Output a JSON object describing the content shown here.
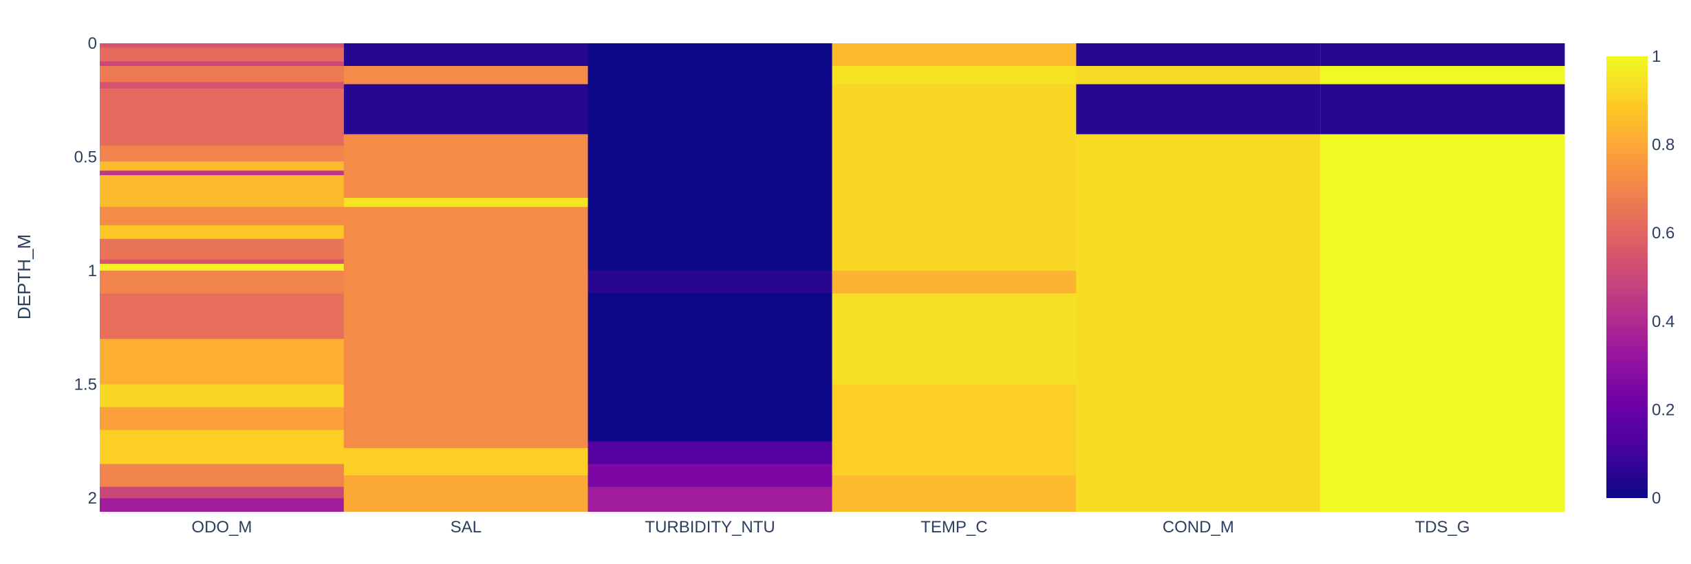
{
  "chart_data": {
    "type": "heatmap",
    "title": "",
    "xlabel": "",
    "ylabel": "DEPTH_M",
    "categories": [
      "ODO_M",
      "SAL",
      "TURBIDITY_NTU",
      "TEMP_C",
      "COND_M",
      "TDS_G"
    ],
    "ylim": [
      0,
      2.06
    ],
    "y_reversed": true,
    "y_ticks": [
      {
        "value": 0,
        "label": "0"
      },
      {
        "value": 0.5,
        "label": "0.5"
      },
      {
        "value": 1,
        "label": "1"
      },
      {
        "value": 1.5,
        "label": "1.5"
      },
      {
        "value": 2,
        "label": "2"
      }
    ],
    "colorscale_name": "Plasma",
    "colorscale": [
      [
        0.0,
        "#0d0887"
      ],
      [
        0.111,
        "#46039f"
      ],
      [
        0.222,
        "#7201a8"
      ],
      [
        0.333,
        "#9c179e"
      ],
      [
        0.444,
        "#bd3786"
      ],
      [
        0.556,
        "#d8576b"
      ],
      [
        0.667,
        "#ed7953"
      ],
      [
        0.778,
        "#fb9f3a"
      ],
      [
        0.889,
        "#fdca26"
      ],
      [
        1.0,
        "#f0f921"
      ]
    ],
    "colorbar": {
      "range": [
        0,
        1
      ],
      "ticks": [
        {
          "value": 0,
          "label": "0"
        },
        {
          "value": 0.2,
          "label": "0.2"
        },
        {
          "value": 0.4,
          "label": "0.4"
        },
        {
          "value": 0.6,
          "label": "0.6"
        },
        {
          "value": 0.8,
          "label": "0.8"
        },
        {
          "value": 1,
          "label": "1"
        }
      ]
    },
    "series": [
      {
        "name": "ODO_M",
        "base": 0.8,
        "bands": [
          {
            "from": 0.0,
            "to": 0.02,
            "value": 0.55
          },
          {
            "from": 0.02,
            "to": 0.08,
            "value": 0.62
          },
          {
            "from": 0.08,
            "to": 0.1,
            "value": 0.5
          },
          {
            "from": 0.1,
            "to": 0.17,
            "value": 0.67
          },
          {
            "from": 0.17,
            "to": 0.2,
            "value": 0.55
          },
          {
            "from": 0.2,
            "to": 0.45,
            "value": 0.62
          },
          {
            "from": 0.45,
            "to": 0.52,
            "value": 0.7
          },
          {
            "from": 0.52,
            "to": 0.56,
            "value": 0.85
          },
          {
            "from": 0.56,
            "to": 0.58,
            "value": 0.45
          },
          {
            "from": 0.58,
            "to": 0.72,
            "value": 0.85
          },
          {
            "from": 0.72,
            "to": 0.8,
            "value": 0.72
          },
          {
            "from": 0.8,
            "to": 0.86,
            "value": 0.88
          },
          {
            "from": 0.86,
            "to": 0.95,
            "value": 0.65
          },
          {
            "from": 0.95,
            "to": 0.97,
            "value": 0.55
          },
          {
            "from": 0.97,
            "to": 1.0,
            "value": 0.98
          },
          {
            "from": 1.0,
            "to": 1.1,
            "value": 0.7
          },
          {
            "from": 1.1,
            "to": 1.3,
            "value": 0.63
          },
          {
            "from": 1.3,
            "to": 1.5,
            "value": 0.82
          },
          {
            "from": 1.5,
            "to": 1.6,
            "value": 0.92
          },
          {
            "from": 1.6,
            "to": 1.7,
            "value": 0.78
          },
          {
            "from": 1.7,
            "to": 1.85,
            "value": 0.9
          },
          {
            "from": 1.85,
            "to": 1.95,
            "value": 0.7
          },
          {
            "from": 1.95,
            "to": 2.0,
            "value": 0.5
          },
          {
            "from": 2.0,
            "to": 2.06,
            "value": 0.35
          }
        ]
      },
      {
        "name": "SAL",
        "base": 0.72,
        "bands": [
          {
            "from": 0.0,
            "to": 0.1,
            "value": 0.05
          },
          {
            "from": 0.1,
            "to": 0.18,
            "value": 0.72
          },
          {
            "from": 0.18,
            "to": 0.4,
            "value": 0.05
          },
          {
            "from": 0.4,
            "to": 0.68,
            "value": 0.72
          },
          {
            "from": 0.68,
            "to": 0.72,
            "value": 0.95
          },
          {
            "from": 0.72,
            "to": 1.78,
            "value": 0.72
          },
          {
            "from": 1.78,
            "to": 1.9,
            "value": 0.9
          },
          {
            "from": 1.9,
            "to": 2.06,
            "value": 0.8
          }
        ]
      },
      {
        "name": "TURBIDITY_NTU",
        "base": 0.0,
        "bands": [
          {
            "from": 0.0,
            "to": 1.0,
            "value": 0.0
          },
          {
            "from": 1.0,
            "to": 1.1,
            "value": 0.05
          },
          {
            "from": 1.1,
            "to": 1.75,
            "value": 0.0
          },
          {
            "from": 1.75,
            "to": 1.85,
            "value": 0.15
          },
          {
            "from": 1.85,
            "to": 1.95,
            "value": 0.25
          },
          {
            "from": 1.95,
            "to": 2.06,
            "value": 0.35
          }
        ]
      },
      {
        "name": "TEMP_C",
        "base": 0.92,
        "bands": [
          {
            "from": 0.0,
            "to": 0.1,
            "value": 0.85
          },
          {
            "from": 0.1,
            "to": 0.18,
            "value": 0.95
          },
          {
            "from": 0.18,
            "to": 1.0,
            "value": 0.92
          },
          {
            "from": 1.0,
            "to": 1.1,
            "value": 0.83
          },
          {
            "from": 1.1,
            "to": 1.5,
            "value": 0.94
          },
          {
            "from": 1.5,
            "to": 1.9,
            "value": 0.9
          },
          {
            "from": 1.9,
            "to": 2.06,
            "value": 0.85
          }
        ]
      },
      {
        "name": "COND_M",
        "base": 0.93,
        "bands": [
          {
            "from": 0.0,
            "to": 0.1,
            "value": 0.05
          },
          {
            "from": 0.1,
            "to": 0.18,
            "value": 0.93
          },
          {
            "from": 0.18,
            "to": 0.4,
            "value": 0.05
          },
          {
            "from": 0.4,
            "to": 2.06,
            "value": 0.93
          }
        ]
      },
      {
        "name": "TDS_G",
        "base": 1.0,
        "bands": [
          {
            "from": 0.0,
            "to": 0.1,
            "value": 0.05
          },
          {
            "from": 0.1,
            "to": 0.18,
            "value": 1.0
          },
          {
            "from": 0.18,
            "to": 0.4,
            "value": 0.05
          },
          {
            "from": 0.4,
            "to": 2.06,
            "value": 1.0
          }
        ]
      }
    ]
  }
}
